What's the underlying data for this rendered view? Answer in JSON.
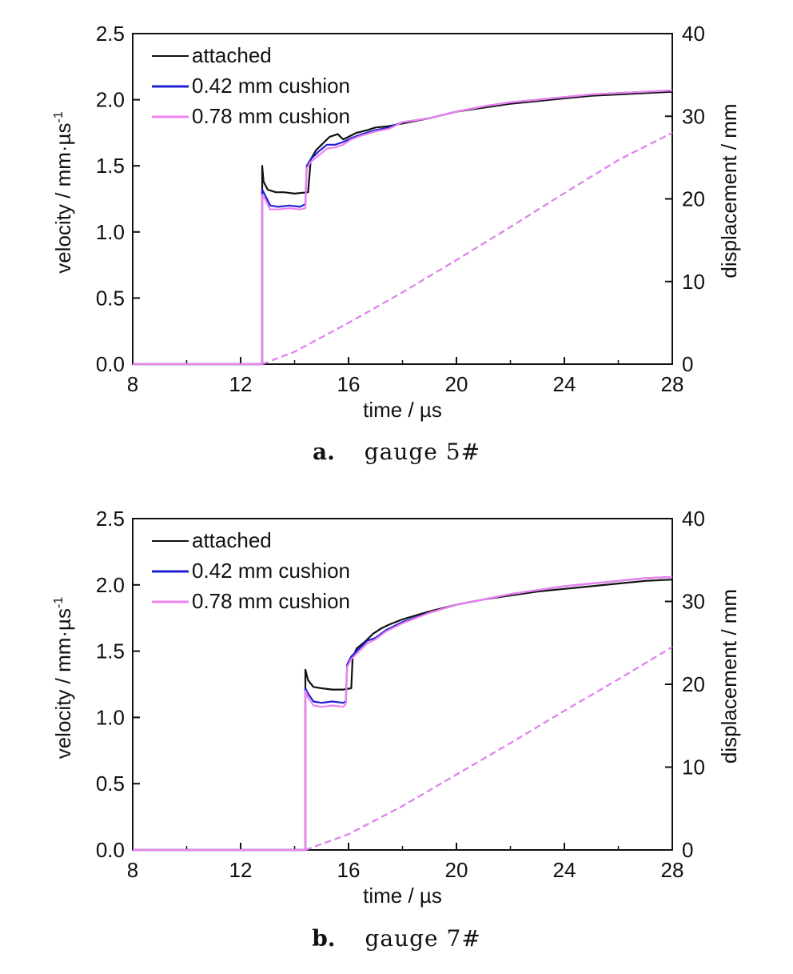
{
  "colors": {
    "attached": "#111111",
    "cushion_042": "#1f1fd6",
    "cushion_078": "#ee82ee"
  },
  "chart_data": [
    {
      "type": "line",
      "caption_letter": "a.",
      "caption_text": "gauge 5#",
      "xlabel": "time / µs",
      "ylabel": "velocity / mm·µs",
      "ylabel_superscript": "-1",
      "y2label": "displacement / mm",
      "xlim": [
        8,
        28
      ],
      "ylim": [
        0,
        2.5
      ],
      "y2lim": [
        0,
        40
      ],
      "xticks": [
        "8",
        "12",
        "16",
        "20",
        "24",
        "28"
      ],
      "yticks": [
        "0.0",
        "0.5",
        "1.0",
        "1.5",
        "2.0",
        "2.5"
      ],
      "y2ticks": [
        "0",
        "10",
        "20",
        "30",
        "40"
      ],
      "legend": {
        "placement": "top-left",
        "entries": [
          "attached",
          "0.42 mm cushion",
          "0.78 mm cushion"
        ]
      },
      "series": [
        {
          "name": "attached",
          "axis": "velocity",
          "color": "#111111",
          "x": [
            8,
            12.8,
            12.8,
            12.85,
            13.0,
            13.3,
            13.6,
            14.0,
            14.5,
            14.6,
            14.8,
            15.0,
            15.3,
            15.6,
            15.8,
            16.0,
            16.3,
            16.7,
            17.0,
            17.5,
            18,
            19,
            20,
            21,
            22,
            23,
            24,
            25,
            26,
            27,
            28
          ],
          "y": [
            0,
            0,
            1.5,
            1.38,
            1.32,
            1.3,
            1.3,
            1.29,
            1.3,
            1.55,
            1.62,
            1.66,
            1.72,
            1.74,
            1.7,
            1.72,
            1.75,
            1.77,
            1.79,
            1.8,
            1.82,
            1.86,
            1.91,
            1.94,
            1.97,
            1.99,
            2.01,
            2.03,
            2.04,
            2.05,
            2.06
          ]
        },
        {
          "name": "0.42 mm cushion",
          "axis": "velocity",
          "color": "#1f1fd6",
          "x": [
            8,
            12.8,
            12.8,
            12.9,
            13.1,
            13.4,
            13.8,
            14.2,
            14.4,
            14.45,
            14.6,
            14.9,
            15.2,
            15.5,
            15.8,
            16.1,
            16.5,
            17,
            17.5,
            18,
            19,
            20,
            21,
            22,
            23,
            24,
            25,
            26,
            27,
            28
          ],
          "y": [
            0,
            0,
            1.32,
            1.28,
            1.2,
            1.19,
            1.2,
            1.19,
            1.21,
            1.5,
            1.55,
            1.61,
            1.66,
            1.66,
            1.68,
            1.71,
            1.74,
            1.77,
            1.79,
            1.83,
            1.86,
            1.91,
            1.95,
            1.98,
            2.0,
            2.02,
            2.04,
            2.05,
            2.06,
            2.07
          ]
        },
        {
          "name": "0.78 mm cushion",
          "axis": "velocity",
          "color": "#ee82ee",
          "x": [
            8,
            12.8,
            12.8,
            12.9,
            13.1,
            13.4,
            13.8,
            14.2,
            14.4,
            14.45,
            14.6,
            14.9,
            15.2,
            15.5,
            15.8,
            16.1,
            16.5,
            17,
            17.5,
            18,
            19,
            20,
            21,
            22,
            23,
            24,
            25,
            26,
            27,
            28
          ],
          "y": [
            0,
            0,
            1.28,
            1.25,
            1.17,
            1.17,
            1.18,
            1.17,
            1.18,
            1.48,
            1.53,
            1.58,
            1.63,
            1.64,
            1.66,
            1.7,
            1.73,
            1.76,
            1.78,
            1.83,
            1.86,
            1.91,
            1.95,
            1.98,
            2.0,
            2.02,
            2.04,
            2.05,
            2.06,
            2.07
          ]
        },
        {
          "name": "0.42 mm cushion displacement",
          "axis": "displacement",
          "color": "#1f1fd6",
          "dash": true,
          "x": [
            12.8,
            14,
            16,
            18,
            20,
            22,
            24,
            26,
            28
          ],
          "y": [
            0,
            1.5,
            5,
            8.7,
            12.6,
            16.6,
            20.7,
            24.7,
            28
          ]
        },
        {
          "name": "0.78 mm cushion displacement",
          "axis": "displacement",
          "color": "#ee82ee",
          "dash": true,
          "x": [
            12.8,
            14,
            16,
            18,
            20,
            22,
            24,
            26,
            28
          ],
          "y": [
            0,
            1.5,
            5,
            8.7,
            12.6,
            16.6,
            20.7,
            24.7,
            28
          ]
        }
      ]
    },
    {
      "type": "line",
      "caption_letter": "b.",
      "caption_text": "gauge 7#",
      "xlabel": "time / µs",
      "ylabel": "velocity / mm·µs",
      "ylabel_superscript": "-1",
      "y2label": "displacement / mm",
      "xlim": [
        8,
        28
      ],
      "ylim": [
        0,
        2.5
      ],
      "y2lim": [
        0,
        40
      ],
      "xticks": [
        "8",
        "12",
        "16",
        "20",
        "24",
        "28"
      ],
      "yticks": [
        "0.0",
        "0.5",
        "1.0",
        "1.5",
        "2.0",
        "2.5"
      ],
      "y2ticks": [
        "0",
        "10",
        "20",
        "30",
        "40"
      ],
      "legend": {
        "placement": "top-left",
        "entries": [
          "attached",
          "0.42 mm cushion",
          "0.78 mm cushion"
        ]
      },
      "series": [
        {
          "name": "attached",
          "axis": "velocity",
          "color": "#111111",
          "x": [
            8,
            14.4,
            14.4,
            14.5,
            14.7,
            15.0,
            15.4,
            15.8,
            16.1,
            16.15,
            16.3,
            16.6,
            16.9,
            17.2,
            17.5,
            18,
            19,
            20,
            21,
            22,
            23,
            24,
            25,
            26,
            27,
            28
          ],
          "y": [
            0,
            0,
            1.36,
            1.28,
            1.23,
            1.22,
            1.21,
            1.21,
            1.22,
            1.45,
            1.52,
            1.57,
            1.63,
            1.67,
            1.7,
            1.74,
            1.8,
            1.85,
            1.89,
            1.92,
            1.95,
            1.97,
            1.99,
            2.01,
            2.03,
            2.04
          ]
        },
        {
          "name": "0.42 mm cushion",
          "axis": "velocity",
          "color": "#1f1fd6",
          "x": [
            8,
            14.4,
            14.4,
            14.5,
            14.7,
            15.0,
            15.4,
            15.8,
            15.9,
            15.95,
            16.1,
            16.4,
            16.7,
            17.0,
            17.4,
            18,
            19,
            20,
            21,
            22,
            23,
            24,
            25,
            26,
            27,
            28
          ],
          "y": [
            0,
            0,
            1.22,
            1.18,
            1.12,
            1.11,
            1.12,
            1.11,
            1.12,
            1.4,
            1.46,
            1.52,
            1.58,
            1.6,
            1.66,
            1.72,
            1.79,
            1.85,
            1.89,
            1.93,
            1.96,
            1.99,
            2.01,
            2.03,
            2.05,
            2.06
          ]
        },
        {
          "name": "0.78 mm cushion",
          "axis": "velocity",
          "color": "#ee82ee",
          "x": [
            8,
            14.4,
            14.4,
            14.5,
            14.7,
            15.0,
            15.4,
            15.8,
            15.9,
            15.95,
            16.1,
            16.4,
            16.7,
            17.0,
            17.4,
            18,
            19,
            20,
            21,
            22,
            23,
            24,
            25,
            26,
            27,
            28
          ],
          "y": [
            0,
            0,
            1.2,
            1.15,
            1.09,
            1.08,
            1.09,
            1.08,
            1.1,
            1.38,
            1.44,
            1.5,
            1.56,
            1.59,
            1.65,
            1.71,
            1.79,
            1.85,
            1.89,
            1.93,
            1.96,
            1.99,
            2.01,
            2.03,
            2.05,
            2.06
          ]
        },
        {
          "name": "0.42 mm cushion displacement",
          "axis": "displacement",
          "color": "#1f1fd6",
          "dash": true,
          "x": [
            14.4,
            16,
            18,
            20,
            22,
            24,
            26,
            28
          ],
          "y": [
            0,
            1.9,
            5.3,
            9.1,
            12.9,
            16.8,
            20.6,
            24.5
          ]
        },
        {
          "name": "0.78 mm cushion displacement",
          "axis": "displacement",
          "color": "#ee82ee",
          "dash": true,
          "x": [
            14.4,
            16,
            18,
            20,
            22,
            24,
            26,
            28
          ],
          "y": [
            0,
            1.9,
            5.3,
            9.1,
            12.9,
            16.8,
            20.6,
            24.5
          ]
        }
      ]
    }
  ]
}
